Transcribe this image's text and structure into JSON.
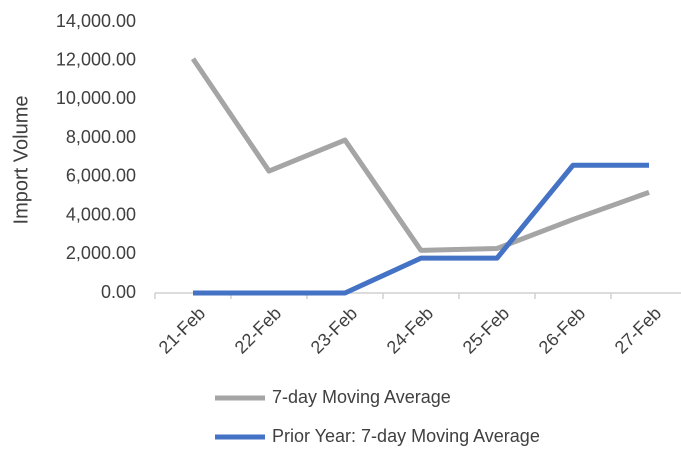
{
  "chart_data": {
    "type": "line",
    "y_label": "Import Volume",
    "categories": [
      "21-Feb",
      "22-Feb",
      "23-Feb",
      "24-Feb",
      "25-Feb",
      "26-Feb",
      "27-Feb"
    ],
    "series": [
      {
        "name": "7-day Moving Average",
        "color": "#a5a5a5",
        "values": [
          12100,
          6300,
          7900,
          2200,
          2300,
          3800,
          5200
        ]
      },
      {
        "name": "Prior Year: 7-day Moving Average",
        "color": "#4472c4",
        "values": [
          0,
          0,
          0,
          1800,
          1800,
          6600,
          6600
        ]
      }
    ],
    "ylim": [
      0,
      14000
    ],
    "yticks": [
      {
        "value": 0,
        "label": "0.00"
      },
      {
        "value": 2000,
        "label": "2,000.00"
      },
      {
        "value": 4000,
        "label": "4,000.00"
      },
      {
        "value": 6000,
        "label": "6,000.00"
      },
      {
        "value": 8000,
        "label": "8,000.00"
      },
      {
        "value": 10000,
        "label": "10,000.00"
      },
      {
        "value": 12000,
        "label": "12,000.00"
      },
      {
        "value": 14000,
        "label": "14,000.00"
      }
    ],
    "grid": false,
    "legend": "bottom"
  }
}
